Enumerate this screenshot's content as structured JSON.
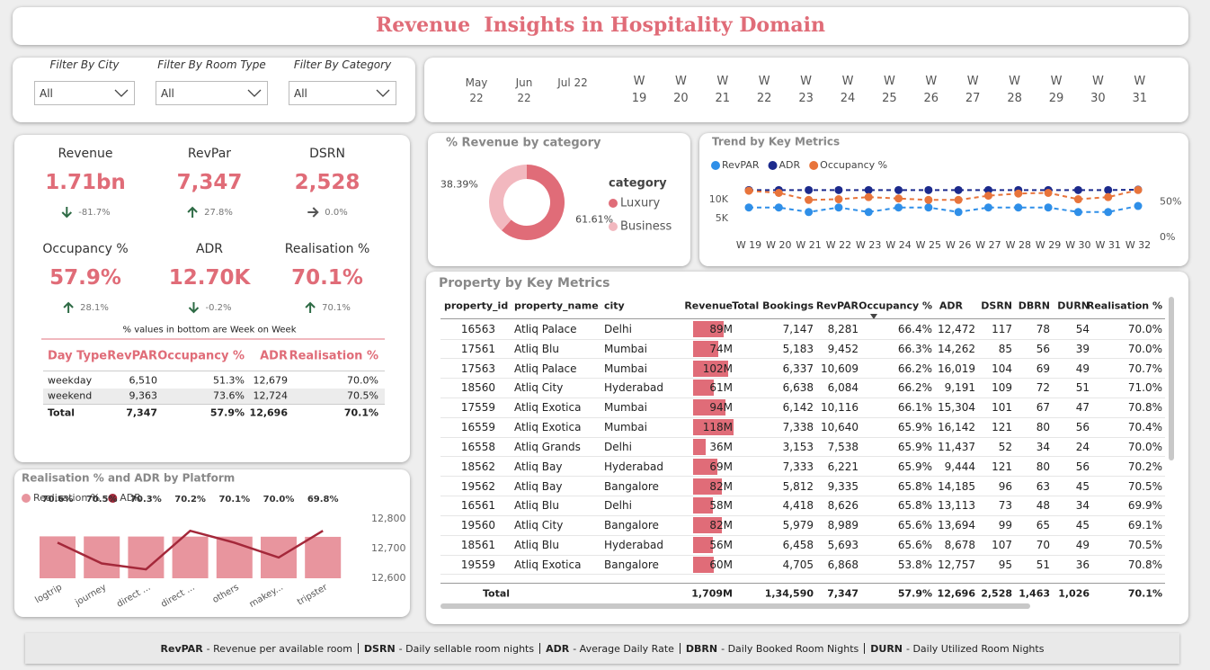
{
  "header": {
    "title": "Revenue  Insights in Hospitality Domain"
  },
  "filters": [
    {
      "label": "Filter By City",
      "value": "All"
    },
    {
      "label": "Filter By Room Type",
      "value": "All"
    },
    {
      "label": "Filter By Category",
      "value": "All"
    }
  ],
  "date_slicer": {
    "months": [
      "May 22",
      "Jun 22",
      "Jul 22"
    ],
    "weeks": [
      "W 19",
      "W 20",
      "W 21",
      "W 22",
      "W 23",
      "W 24",
      "W 25",
      "W 26",
      "W 27",
      "W 28",
      "W 29",
      "W 30",
      "W 31"
    ]
  },
  "kpis": {
    "cards": [
      {
        "label": "Revenue",
        "value": "1.71bn",
        "change": "-81.7%",
        "direction": "down"
      },
      {
        "label": "RevPar",
        "value": "7,347",
        "change": "27.8%",
        "direction": "up"
      },
      {
        "label": "DSRN",
        "value": "2,528",
        "change": "0.0%",
        "direction": "flat"
      },
      {
        "label": "Occupancy %",
        "value": "57.9%",
        "change": "28.1%",
        "direction": "up"
      },
      {
        "label": "ADR",
        "value": "12.70K",
        "change": "-0.2%",
        "direction": "down"
      },
      {
        "label": "Realisation %",
        "value": "70.1%",
        "change": "70.1%",
        "direction": "up"
      }
    ],
    "note": "% values in bottom are Week on Week"
  },
  "day_type_table": {
    "headers": [
      "Day Type",
      "RevPAR",
      "Occupancy %",
      "ADR",
      "Realisation %"
    ],
    "rows": [
      [
        "weekday",
        "6,510",
        "51.3%",
        "12,679",
        "70.0%"
      ],
      [
        "weekend",
        "9,363",
        "73.6%",
        "12,724",
        "70.5%"
      ]
    ],
    "total": [
      "Total",
      "7,347",
      "57.9%",
      "12,696",
      "70.1%"
    ]
  },
  "property_table": {
    "title": "Property by Key Metrics",
    "headers": [
      "property_id",
      "property_name",
      "city",
      "Revenue",
      "Total Bookings",
      "RevPAR",
      "Occupancy %",
      "ADR",
      "DSRN",
      "DBRN",
      "DURN",
      "Realisation %"
    ],
    "rows": [
      [
        "16563",
        "Atliq Palace",
        "Delhi",
        "89M",
        "7,147",
        "8,281",
        "66.4%",
        "12,472",
        "117",
        "78",
        "54",
        "70.0%"
      ],
      [
        "17561",
        "Atliq Blu",
        "Mumbai",
        "74M",
        "5,183",
        "9,452",
        "66.3%",
        "14,262",
        "85",
        "56",
        "39",
        "70.0%"
      ],
      [
        "17563",
        "Atliq Palace",
        "Mumbai",
        "102M",
        "6,337",
        "10,609",
        "66.2%",
        "16,019",
        "104",
        "69",
        "49",
        "70.7%"
      ],
      [
        "18560",
        "Atliq City",
        "Hyderabad",
        "61M",
        "6,638",
        "6,084",
        "66.2%",
        "9,191",
        "109",
        "72",
        "51",
        "71.0%"
      ],
      [
        "17559",
        "Atliq Exotica",
        "Mumbai",
        "94M",
        "6,142",
        "10,116",
        "66.1%",
        "15,304",
        "101",
        "67",
        "47",
        "70.8%"
      ],
      [
        "16559",
        "Atliq Exotica",
        "Mumbai",
        "118M",
        "7,338",
        "10,640",
        "65.9%",
        "16,142",
        "121",
        "80",
        "56",
        "70.4%"
      ],
      [
        "16558",
        "Atliq Grands",
        "Delhi",
        "36M",
        "3,153",
        "7,538",
        "65.9%",
        "11,437",
        "52",
        "34",
        "24",
        "70.0%"
      ],
      [
        "18562",
        "Atliq Bay",
        "Hyderabad",
        "69M",
        "7,333",
        "6,221",
        "65.9%",
        "9,444",
        "121",
        "80",
        "56",
        "70.2%"
      ],
      [
        "19562",
        "Atliq Bay",
        "Bangalore",
        "82M",
        "5,812",
        "9,335",
        "65.8%",
        "14,185",
        "96",
        "63",
        "45",
        "70.5%"
      ],
      [
        "16561",
        "Atliq Blu",
        "Delhi",
        "58M",
        "4,418",
        "8,626",
        "65.8%",
        "13,113",
        "73",
        "48",
        "34",
        "69.9%"
      ],
      [
        "19560",
        "Atliq City",
        "Bangalore",
        "82M",
        "5,979",
        "8,989",
        "65.6%",
        "13,694",
        "99",
        "65",
        "45",
        "69.1%"
      ],
      [
        "18561",
        "Atliq Blu",
        "Hyderabad",
        "56M",
        "6,458",
        "5,693",
        "65.6%",
        "8,678",
        "107",
        "70",
        "49",
        "70.5%"
      ],
      [
        "19559",
        "Atliq Exotica",
        "Bangalore",
        "60M",
        "4,705",
        "6,868",
        "53.8%",
        "12,757",
        "95",
        "51",
        "36",
        "70.8%"
      ]
    ],
    "revenue_bars": [
      89,
      74,
      102,
      61,
      94,
      118,
      36,
      69,
      82,
      58,
      82,
      56,
      60
    ],
    "revenue_bar_color": "#e06c78",
    "total": {
      "label": "Total",
      "values": [
        "1,709M",
        "1,34,590",
        "7,347",
        "57.9%",
        "12,696",
        "2,528",
        "1,463",
        "1,026",
        "70.1%"
      ]
    }
  },
  "chart_data": [
    {
      "type": "pie",
      "title": "% Revenue by category",
      "legend_title": "category",
      "categories": [
        "Luxury",
        "Business"
      ],
      "values": [
        61.61,
        38.39
      ],
      "value_labels": [
        "61.61%",
        "38.39%"
      ],
      "colors": [
        "#e06c78",
        "#f2b8bf"
      ],
      "donut": true
    },
    {
      "type": "line",
      "title": "Trend by Key Metrics",
      "categories": [
        "W 19",
        "W 20",
        "W 21",
        "W 22",
        "W 23",
        "W 24",
        "W 25",
        "W 26",
        "W 27",
        "W 28",
        "W 29",
        "W 30",
        "W 31",
        "W 32"
      ],
      "series": [
        {
          "name": "RevPAR",
          "color": "#2f8fe8",
          "values": [
            7900,
            7900,
            6700,
            7900,
            6700,
            7900,
            7900,
            6700,
            7900,
            7900,
            7900,
            6700,
            6700,
            8300
          ]
        },
        {
          "name": "ADR",
          "color": "#1c2a8c",
          "values": [
            12500,
            12500,
            12500,
            12500,
            12500,
            12500,
            12500,
            12500,
            12500,
            12500,
            12500,
            12500,
            12500,
            12600
          ]
        },
        {
          "name": "Occupancy %",
          "color": "#e8743b",
          "axis": "y2",
          "values": [
            66,
            63,
            53,
            54,
            57,
            55,
            53,
            53,
            59,
            62,
            63,
            54,
            57,
            67
          ]
        }
      ],
      "ylim": [
        0,
        14000
      ],
      "yticks": [
        {
          "value": 5000,
          "label": "5K"
        },
        {
          "value": 10000,
          "label": "10K"
        }
      ],
      "y2lim": [
        0,
        75
      ],
      "y2ticks": [
        {
          "value": 0,
          "label": "0%"
        },
        {
          "value": 50,
          "label": "50%"
        }
      ],
      "line_style": "dashed"
    },
    {
      "type": "combo",
      "title": "Realisation % and ADR by Platform",
      "categories": [
        "logtrip",
        "journey",
        "direct ...",
        "direct ...",
        "others",
        "makey...",
        "tripster"
      ],
      "series": [
        {
          "name": "Realisation %",
          "type": "bar",
          "color": "#e8959e",
          "values": [
            70.6,
            70.5,
            70.3,
            70.2,
            70.1,
            70.0,
            69.8
          ],
          "value_labels": [
            "70.6%",
            "70.5%",
            "70.3%",
            "70.2%",
            "70.1%",
            "70.0%",
            "69.8%"
          ]
        },
        {
          "name": "ADR",
          "type": "line",
          "color": "#a4283a",
          "axis": "y2",
          "values": [
            12720,
            12650,
            12630,
            12760,
            12720,
            12670,
            12760
          ]
        }
      ],
      "ylim": [
        0,
        100
      ],
      "y2lim": [
        12600,
        12800
      ],
      "y2ticks": [
        {
          "value": 12600,
          "label": "12,600"
        },
        {
          "value": 12700,
          "label": "12,700"
        },
        {
          "value": 12800,
          "label": "12,800"
        }
      ]
    }
  ],
  "footer": [
    {
      "abbr": "RevPAR",
      "text": "- Revenue per available room"
    },
    {
      "abbr": "DSRN",
      "text": "- Daily sellable room nights"
    },
    {
      "abbr": "ADR",
      "text": "- Average Daily Rate"
    },
    {
      "abbr": "DBRN",
      "text": "- Daily Booked Room Nights"
    },
    {
      "abbr": "DURN",
      "text": "- Daily Utilized Room Nights"
    }
  ]
}
